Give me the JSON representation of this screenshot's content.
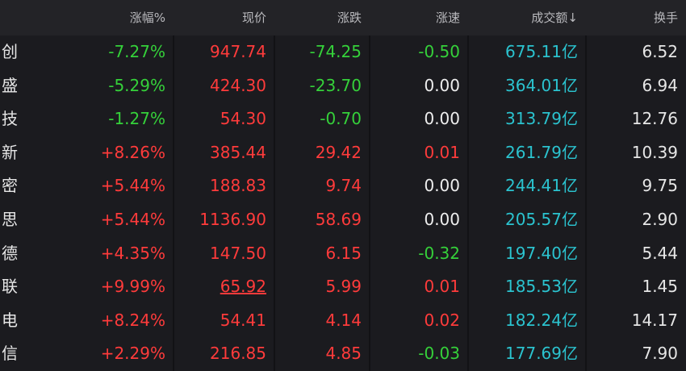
{
  "table": {
    "header": [
      "涨幅%",
      "现价",
      "涨跌",
      "涨速",
      "成交额↓",
      "换手"
    ],
    "rows": [
      [
        "创",
        "-7.27%",
        "947.74",
        "-74.25",
        "-0.50",
        "675.11亿",
        "6.52"
      ],
      [
        "盛",
        "-5.29%",
        "424.30",
        "-23.70",
        "0.00",
        "364.01亿",
        "6.94"
      ],
      [
        "技",
        "-1.27%",
        "54.30",
        "-0.70",
        "0.00",
        "313.79亿",
        "12.76"
      ],
      [
        "新",
        "+8.26%",
        "385.44",
        "29.42",
        "0.01",
        "261.79亿",
        "10.39"
      ],
      [
        "密",
        "+5.44%",
        "188.83",
        "9.74",
        "0.00",
        "244.41亿",
        "9.75"
      ],
      [
        "思",
        "+5.44%",
        "1136.90",
        "58.69",
        "0.00",
        "205.57亿",
        "2.90"
      ],
      [
        "德",
        "+4.35%",
        "147.50",
        "6.15",
        "-0.32",
        "197.40亿",
        "5.44"
      ],
      [
        "联",
        "+9.99%",
        "65.92",
        "5.99",
        "0.01",
        "185.53亿",
        "1.45"
      ],
      [
        "电",
        "+8.24%",
        "54.41",
        "4.14",
        "0.02",
        "182.24亿",
        "14.17"
      ],
      [
        "信",
        "+2.29%",
        "216.85",
        "4.85",
        "-0.03",
        "177.69亿",
        "7.90"
      ]
    ]
  }
}
